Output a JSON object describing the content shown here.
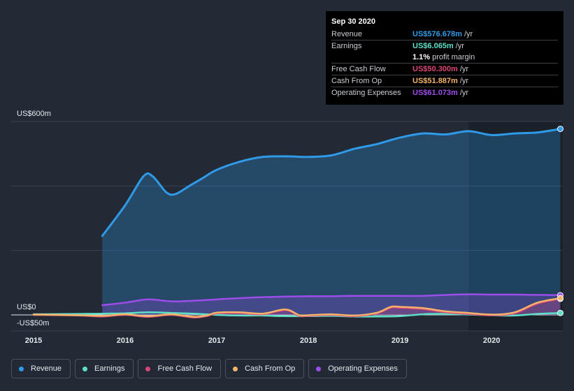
{
  "tooltip": {
    "date": "Sep 30 2020",
    "rows": [
      {
        "key": "Revenue",
        "value": "US$576.678m",
        "unit": "/yr",
        "color": "#2f9be8"
      },
      {
        "key": "Earnings",
        "value": "US$6.065m",
        "unit": "/yr",
        "color": "#5ee0c8"
      },
      {
        "key": "",
        "value": "1.1%",
        "unit": "profit margin",
        "color": "#ffffff"
      },
      {
        "key": "Free Cash Flow",
        "value": "US$50.300m",
        "unit": "/yr",
        "color": "#d9467a"
      },
      {
        "key": "Cash From Op",
        "value": "US$51.887m",
        "unit": "/yr",
        "color": "#f3b36b"
      },
      {
        "key": "Operating Expenses",
        "value": "US$61.073m",
        "unit": "/yr",
        "color": "#9c4dea"
      }
    ]
  },
  "legend": [
    {
      "label": "Revenue",
      "color": "#2f9be8"
    },
    {
      "label": "Earnings",
      "color": "#5ee0c8"
    },
    {
      "label": "Free Cash Flow",
      "color": "#d9467a"
    },
    {
      "label": "Cash From Op",
      "color": "#f3b36b"
    },
    {
      "label": "Operating Expenses",
      "color": "#9c4dea"
    }
  ],
  "chart_data": {
    "type": "area",
    "title": "",
    "xlabel": "",
    "ylabel": "",
    "y_top_label": "US$600m",
    "y_zero_label": "US$0",
    "y_bottom_label": "-US$50m",
    "ylim": [
      -50,
      600
    ],
    "xlim": [
      2015,
      2020.8
    ],
    "x_ticks": [
      "2015",
      "2016",
      "2017",
      "2018",
      "2019",
      "2020"
    ],
    "x_tick_values": [
      2015,
      2016,
      2017,
      2018,
      2019,
      2020
    ],
    "highlight_start": 2019.75,
    "series": [
      {
        "name": "Revenue",
        "color": "#2f9be8",
        "fill": true,
        "x": [
          2015.75,
          2016.0,
          2016.2,
          2016.3,
          2016.45,
          2016.55,
          2016.7,
          2016.85,
          2017.0,
          2017.25,
          2017.5,
          2017.75,
          2018.0,
          2018.25,
          2018.5,
          2018.75,
          2019.0,
          2019.25,
          2019.5,
          2019.75,
          2020.0,
          2020.25,
          2020.5,
          2020.75
        ],
        "values": [
          245,
          340,
          430,
          430,
          380,
          375,
          400,
          425,
          450,
          475,
          490,
          492,
          490,
          495,
          515,
          530,
          550,
          563,
          560,
          570,
          558,
          563,
          566,
          577
        ]
      },
      {
        "name": "Operating Expenses",
        "color": "#9c4dea",
        "fill": true,
        "x": [
          2015.75,
          2016.0,
          2016.25,
          2016.5,
          2016.75,
          2017.0,
          2017.25,
          2017.5,
          2017.75,
          2018.0,
          2018.25,
          2018.5,
          2018.75,
          2019.0,
          2019.25,
          2019.5,
          2019.75,
          2020.0,
          2020.25,
          2020.5,
          2020.75
        ],
        "values": [
          30,
          38,
          48,
          42,
          44,
          48,
          52,
          55,
          57,
          58,
          58,
          59,
          59,
          59,
          59,
          62,
          64,
          63,
          63,
          62,
          61
        ]
      },
      {
        "name": "Earnings",
        "color": "#5ee0c8",
        "fill": false,
        "x": [
          2015.0,
          2015.5,
          2015.75,
          2016.0,
          2016.25,
          2016.5,
          2016.75,
          2017.0,
          2017.25,
          2017.5,
          2017.75,
          2018.0,
          2018.25,
          2018.5,
          2018.75,
          2019.0,
          2019.25,
          2019.5,
          2019.75,
          2020.0,
          2020.25,
          2020.5,
          2020.75
        ],
        "values": [
          2,
          3,
          4,
          5,
          8,
          6,
          4,
          0,
          -2,
          -2,
          -4,
          -4,
          -3,
          -5,
          -5,
          -4,
          2,
          3,
          1,
          -1,
          -2,
          3,
          6
        ]
      },
      {
        "name": "Free Cash Flow",
        "color": "#d9467a",
        "fill": true,
        "x": [
          2015.0,
          2015.5,
          2015.75,
          2016.0,
          2016.25,
          2016.5,
          2016.75,
          2016.9,
          2017.0,
          2017.25,
          2017.5,
          2017.75,
          2017.9,
          2018.0,
          2018.25,
          2018.5,
          2018.75,
          2018.9,
          2019.0,
          2019.25,
          2019.5,
          2019.75,
          2020.0,
          2020.25,
          2020.5,
          2020.75
        ],
        "values": [
          0,
          -2,
          -5,
          0,
          -6,
          0,
          -8,
          -3,
          5,
          6,
          2,
          15,
          -3,
          -3,
          0,
          -4,
          5,
          22,
          22,
          18,
          8,
          3,
          -1,
          5,
          35,
          50
        ]
      },
      {
        "name": "Cash From Op",
        "color": "#f3b36b",
        "fill": false,
        "x": [
          2015.0,
          2015.5,
          2015.75,
          2016.0,
          2016.25,
          2016.5,
          2016.75,
          2016.9,
          2017.0,
          2017.25,
          2017.5,
          2017.75,
          2017.9,
          2018.0,
          2018.25,
          2018.5,
          2018.75,
          2018.9,
          2019.0,
          2019.25,
          2019.5,
          2019.75,
          2020.0,
          2020.25,
          2020.5,
          2020.75
        ],
        "values": [
          1,
          -1,
          -3,
          2,
          -4,
          2,
          -6,
          -1,
          7,
          8,
          4,
          17,
          -1,
          -1,
          2,
          -2,
          7,
          25,
          25,
          21,
          11,
          6,
          1,
          8,
          38,
          52
        ]
      }
    ]
  }
}
